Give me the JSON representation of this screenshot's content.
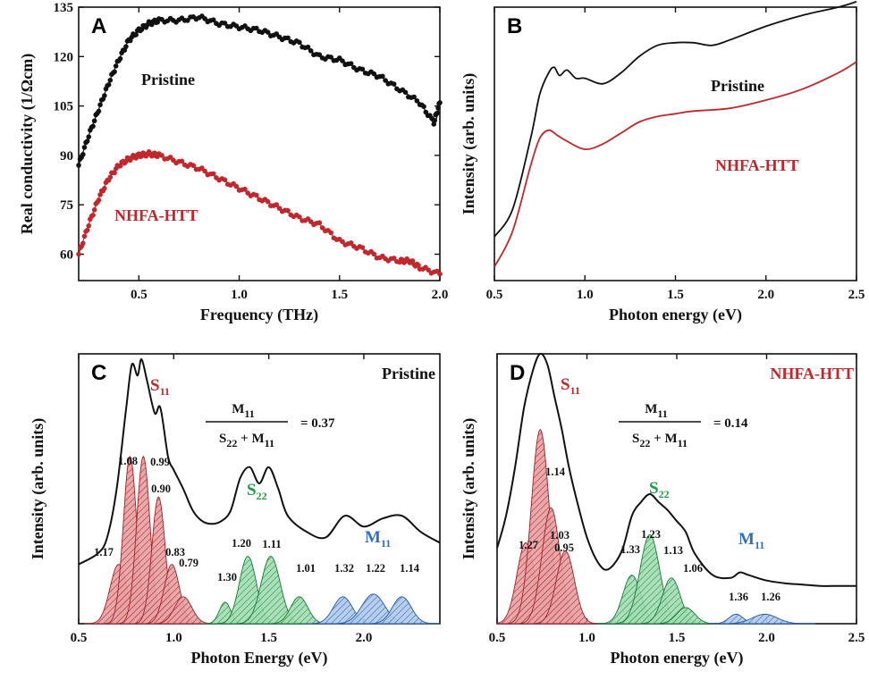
{
  "colors": {
    "black": "#111111",
    "red": "#c0282d",
    "green": "#1e9a45",
    "blue": "#2f6fc0"
  },
  "chart_data": [
    {
      "panel": "A",
      "type": "scatter",
      "xlabel": "Frequency (THz)",
      "ylabel": "Real conductivity (1/Ωcm)",
      "xlim": [
        0.2,
        2.0
      ],
      "ylim": [
        52,
        135
      ],
      "xticks": [
        "0.5",
        "1.0",
        "1.5",
        "2.0"
      ],
      "yticks": [
        "60",
        "75",
        "90",
        "105",
        "120",
        "135"
      ],
      "series": [
        {
          "name": "Pristine",
          "color": "#111111",
          "x": [
            0.2,
            0.25,
            0.3,
            0.35,
            0.4,
            0.45,
            0.5,
            0.55,
            0.6,
            0.7,
            0.8,
            0.9,
            1.0,
            1.1,
            1.2,
            1.3,
            1.4,
            1.5,
            1.6,
            1.7,
            1.8,
            1.9,
            1.97,
            2.0
          ],
          "y": [
            87,
            96,
            104,
            112,
            119,
            125,
            128,
            130,
            131,
            131,
            132,
            130,
            129,
            128,
            126,
            124,
            120,
            119,
            116,
            114,
            110,
            106,
            100,
            106
          ]
        },
        {
          "name": "NHFA-HTT",
          "color": "#c0282d",
          "x": [
            0.2,
            0.25,
            0.3,
            0.35,
            0.4,
            0.45,
            0.5,
            0.55,
            0.6,
            0.7,
            0.8,
            0.9,
            1.0,
            1.1,
            1.2,
            1.3,
            1.4,
            1.5,
            1.6,
            1.7,
            1.8,
            1.85,
            1.9,
            2.0
          ],
          "y": [
            60,
            69,
            77,
            83,
            87,
            89,
            90,
            90.5,
            90,
            88,
            86,
            83,
            80,
            77,
            74,
            71,
            69,
            64,
            62,
            59,
            58,
            58,
            56,
            54
          ]
        }
      ]
    },
    {
      "panel": "B",
      "type": "line",
      "xlabel": "Photon energy (eV)",
      "ylabel": "Intensity (arb. units)",
      "xlim": [
        0.5,
        2.5
      ],
      "ylim": [
        0,
        100
      ],
      "xticks": [
        "0.5",
        "1.0",
        "1.5",
        "2.0",
        "2.5"
      ],
      "series": [
        {
          "name": "Pristine",
          "color": "#111111",
          "x": [
            0.5,
            0.6,
            0.7,
            0.75,
            0.8,
            0.83,
            0.86,
            0.9,
            0.95,
            1.0,
            1.1,
            1.2,
            1.3,
            1.4,
            1.5,
            1.6,
            1.7,
            1.8,
            2.0,
            2.2,
            2.4,
            2.5
          ],
          "y": [
            16,
            26,
            52,
            68,
            76,
            78,
            75,
            77,
            74,
            74,
            72,
            76,
            82,
            86,
            87,
            87,
            86,
            88,
            93,
            97,
            100,
            102
          ]
        },
        {
          "name": "NHFA-HTT",
          "color": "#c0282d",
          "x": [
            0.5,
            0.6,
            0.7,
            0.75,
            0.8,
            0.85,
            0.9,
            1.0,
            1.1,
            1.2,
            1.3,
            1.4,
            1.5,
            1.6,
            1.8,
            2.0,
            2.2,
            2.4,
            2.5
          ],
          "y": [
            5,
            18,
            42,
            52,
            55,
            53,
            51,
            48,
            50,
            54,
            58,
            60,
            61,
            62,
            63,
            66,
            70,
            76,
            80
          ]
        }
      ]
    },
    {
      "panel": "C",
      "type": "line",
      "title": "Pristine",
      "xlabel": "Photon Energy (eV)",
      "ylabel": "Intensity (arb. units)",
      "xlim": [
        0.5,
        2.4
      ],
      "ylim": [
        0,
        100
      ],
      "xticks": [
        "0.5",
        "1.0",
        "1.5",
        "2.0"
      ],
      "formula": {
        "numerator": "M",
        "numerator_sub": "11",
        "denominator": "S",
        "denominator_sub1": "22",
        "denominator_plus": " + M",
        "denominator_sub2": "11",
        "value": "= 0.37"
      },
      "band_labels": {
        "s11": "S",
        "s11_sub": "11",
        "s22": "S",
        "s22_sub": "22",
        "m11": "M",
        "m11_sub": "11"
      },
      "peak_labels": [
        "1.17",
        "1.08",
        "0.99",
        "0.90",
        "0.83",
        "0.79",
        "1.30",
        "1.20",
        "1.11",
        "1.01",
        "1.32",
        "1.22",
        "1.14"
      ],
      "peaks": [
        {
          "label": "1.17",
          "center": 0.71,
          "height": 22,
          "width": 0.045,
          "group": "s11"
        },
        {
          "label": "1.08",
          "center": 0.77,
          "height": 62,
          "width": 0.035,
          "group": "s11"
        },
        {
          "label": "0.99",
          "center": 0.84,
          "height": 62,
          "width": 0.035,
          "group": "s11"
        },
        {
          "label": "0.90",
          "center": 0.92,
          "height": 47,
          "width": 0.035,
          "group": "s11"
        },
        {
          "label": "0.83",
          "center": 0.99,
          "height": 22,
          "width": 0.04,
          "group": "s11"
        },
        {
          "label": "0.79",
          "center": 1.05,
          "height": 10,
          "width": 0.045,
          "group": "s11"
        },
        {
          "label": "1.30",
          "center": 1.27,
          "height": 8,
          "width": 0.03,
          "group": "s22"
        },
        {
          "label": "1.20",
          "center": 1.39,
          "height": 25,
          "width": 0.045,
          "group": "s22"
        },
        {
          "label": "1.11",
          "center": 1.51,
          "height": 25,
          "width": 0.05,
          "group": "s22"
        },
        {
          "label": "1.01",
          "center": 1.66,
          "height": 10,
          "width": 0.045,
          "group": "s22"
        },
        {
          "label": "1.32",
          "center": 1.89,
          "height": 10,
          "width": 0.05,
          "group": "m11"
        },
        {
          "label": "1.22",
          "center": 2.05,
          "height": 11,
          "width": 0.06,
          "group": "m11"
        },
        {
          "label": "1.14",
          "center": 2.2,
          "height": 10,
          "width": 0.05,
          "group": "m11"
        }
      ],
      "envelope": {
        "x": [
          0.5,
          0.6,
          0.65,
          0.7,
          0.75,
          0.78,
          0.81,
          0.83,
          0.86,
          0.9,
          0.93,
          0.97,
          1.0,
          1.05,
          1.1,
          1.15,
          1.2,
          1.25,
          1.3,
          1.35,
          1.4,
          1.45,
          1.5,
          1.55,
          1.6,
          1.7,
          1.8,
          1.9,
          2.0,
          2.1,
          2.2,
          2.3,
          2.4
        ],
        "y": [
          22,
          26,
          32,
          50,
          80,
          96,
          92,
          98,
          90,
          78,
          80,
          62,
          57,
          50,
          42,
          38,
          37,
          38,
          42,
          54,
          58,
          52,
          58,
          50,
          40,
          34,
          32,
          40,
          36,
          39,
          40,
          34,
          30
        ]
      }
    },
    {
      "panel": "D",
      "type": "line",
      "title": "NHFA-HTT",
      "xlabel": "Photon energy (eV)",
      "ylabel": "Intensity (arb. units)",
      "xlim": [
        0.5,
        2.5
      ],
      "ylim": [
        0,
        100
      ],
      "xticks": [
        "0.5",
        "1.0",
        "1.5",
        "2.0",
        "2.5"
      ],
      "formula": {
        "numerator": "M",
        "numerator_sub": "11",
        "denominator": "S",
        "denominator_sub1": "22",
        "denominator_plus": " + M",
        "denominator_sub2": "11",
        "value": "= 0.14"
      },
      "band_labels": {
        "s11": "S",
        "s11_sub": "11",
        "s22": "S",
        "s22_sub": "22",
        "m11": "M",
        "m11_sub": "11"
      },
      "peak_labels": [
        "1.27",
        "1.14",
        "1.03",
        "0.95",
        "1.33",
        "1.23",
        "1.13",
        "1.06",
        "1.36",
        "1.26"
      ],
      "peaks": [
        {
          "label": "1.27",
          "center": 0.66,
          "height": 30,
          "width": 0.05,
          "group": "s11"
        },
        {
          "label": "1.14",
          "center": 0.74,
          "height": 72,
          "width": 0.05,
          "group": "s11"
        },
        {
          "label": "1.03",
          "center": 0.8,
          "height": 43,
          "width": 0.05,
          "group": "s11"
        },
        {
          "label": "0.95",
          "center": 0.88,
          "height": 27,
          "width": 0.05,
          "group": "s11"
        },
        {
          "label": "1.33",
          "center": 1.25,
          "height": 18,
          "width": 0.05,
          "group": "s22"
        },
        {
          "label": "1.23",
          "center": 1.35,
          "height": 33,
          "width": 0.055,
          "group": "s22"
        },
        {
          "label": "1.13",
          "center": 1.47,
          "height": 17,
          "width": 0.05,
          "group": "s22"
        },
        {
          "label": "1.06",
          "center": 1.55,
          "height": 6,
          "width": 0.05,
          "group": "s22"
        },
        {
          "label": "1.36",
          "center": 1.83,
          "height": 3.5,
          "width": 0.04,
          "group": "m11"
        },
        {
          "label": "1.26",
          "center": 1.99,
          "height": 3.5,
          "width": 0.07,
          "group": "m11"
        }
      ],
      "envelope": {
        "x": [
          0.5,
          0.55,
          0.6,
          0.65,
          0.7,
          0.74,
          0.78,
          0.82,
          0.86,
          0.9,
          0.95,
          1.0,
          1.05,
          1.1,
          1.15,
          1.2,
          1.25,
          1.3,
          1.35,
          1.4,
          1.45,
          1.5,
          1.55,
          1.6,
          1.7,
          1.8,
          1.85,
          1.9,
          2.0,
          2.1,
          2.2,
          2.3,
          2.4,
          2.5
        ],
        "y": [
          28,
          40,
          58,
          80,
          94,
          100,
          96,
          84,
          72,
          58,
          44,
          32,
          24,
          20,
          22,
          28,
          40,
          45,
          48,
          45,
          42,
          38,
          34,
          26,
          18,
          17,
          19,
          18,
          16,
          15,
          14.5,
          14,
          14,
          14
        ]
      }
    }
  ]
}
